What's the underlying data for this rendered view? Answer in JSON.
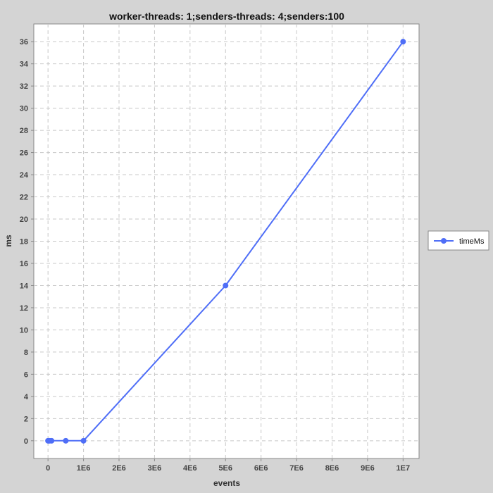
{
  "colors": {
    "background": "#d4d4d4",
    "plot_background": "#ffffff",
    "grid": "#c8c8c8",
    "series": "#4f6ef7",
    "axis": "#888888"
  },
  "chart_data": {
    "type": "line",
    "title": "worker-threads: 1;senders-threads: 4;senders:100",
    "xlabel": "events",
    "ylabel": "ms",
    "xlim": [
      -400000,
      10450000
    ],
    "ylim": [
      -1.6,
      37.6
    ],
    "x_ticks": [
      0,
      1000000,
      2000000,
      3000000,
      4000000,
      5000000,
      6000000,
      7000000,
      8000000,
      9000000,
      10000000
    ],
    "x_tick_labels": [
      "0",
      "1E6",
      "2E6",
      "3E6",
      "4E6",
      "5E6",
      "6E6",
      "7E6",
      "8E6",
      "9E6",
      "1E7"
    ],
    "y_ticks": [
      0,
      2,
      4,
      6,
      8,
      10,
      12,
      14,
      16,
      18,
      20,
      22,
      24,
      26,
      28,
      30,
      32,
      34,
      36
    ],
    "y_tick_labels": [
      "0",
      "2",
      "4",
      "6",
      "8",
      "10",
      "12",
      "14",
      "16",
      "18",
      "20",
      "22",
      "24",
      "26",
      "28",
      "30",
      "32",
      "34",
      "36"
    ],
    "grid": true,
    "legend_position": "right",
    "series": [
      {
        "name": "timeMs",
        "color": "#4f6ef7",
        "x": [
          0,
          10000,
          50000,
          100000,
          500000,
          1000000,
          5000000,
          10000000
        ],
        "y": [
          0,
          0,
          0,
          0,
          0,
          0,
          14,
          36
        ]
      }
    ]
  }
}
